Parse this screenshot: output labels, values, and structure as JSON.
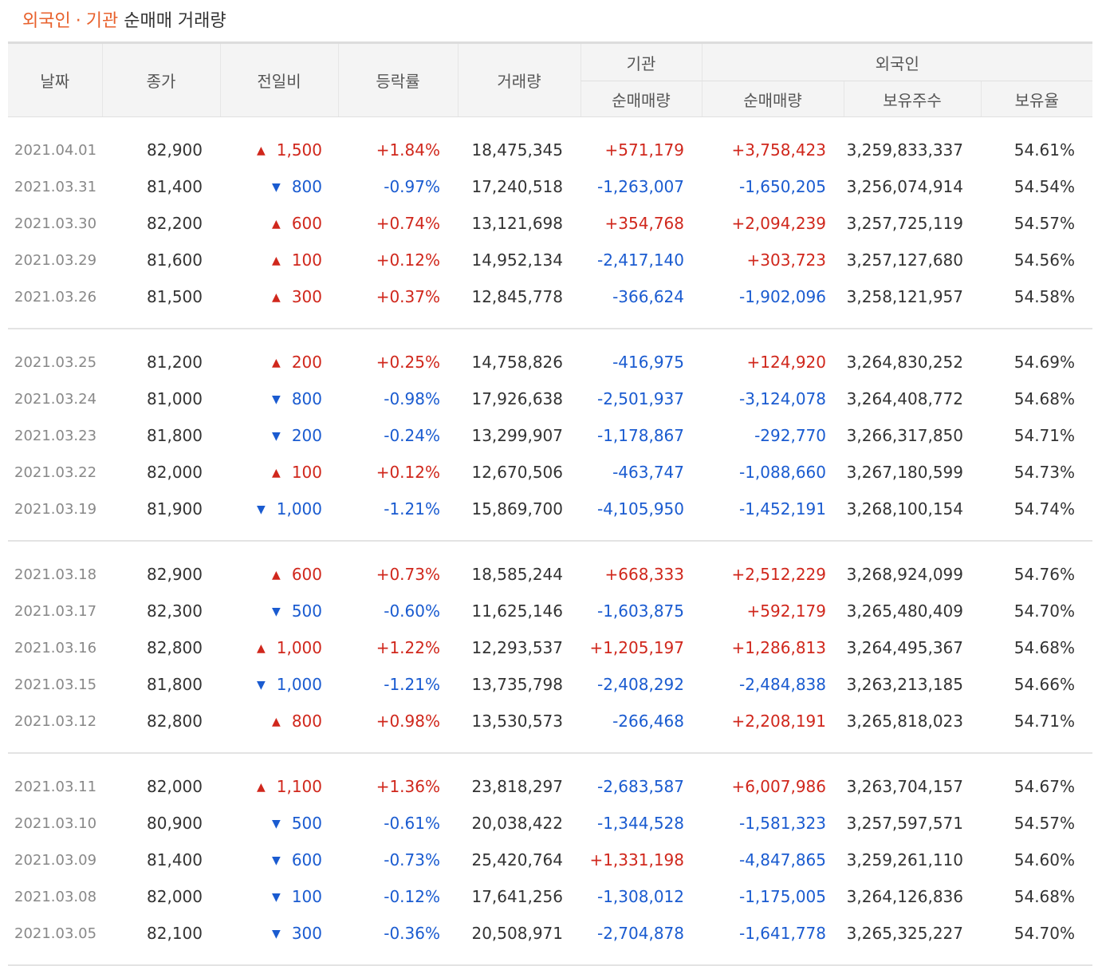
{
  "title": {
    "part1": "외국인",
    "dot": "·",
    "part2": "기관",
    "rest": "순매매 거래량"
  },
  "headers": {
    "date": "날짜",
    "close": "종가",
    "change": "전일비",
    "rate": "등락률",
    "volume": "거래량",
    "institution": "기관",
    "inst_net": "순매매량",
    "foreign": "외국인",
    "foreign_net": "순매매량",
    "holdings": "보유주수",
    "ratio": "보유율"
  },
  "colors": {
    "up": "#d0271c",
    "down": "#1a5bd0",
    "accent": "#e8612c"
  },
  "groups": [
    [
      {
        "date": "2021.04.01",
        "close": "82,900",
        "dir": "up",
        "change": "1,500",
        "rate": "+1.84%",
        "volume": "18,475,345",
        "inst": "+571,179",
        "inst_dir": "up",
        "foreign": "+3,758,423",
        "foreign_dir": "up",
        "holdings": "3,259,833,337",
        "ratio": "54.61%"
      },
      {
        "date": "2021.03.31",
        "close": "81,400",
        "dir": "down",
        "change": "800",
        "rate": "-0.97%",
        "volume": "17,240,518",
        "inst": "-1,263,007",
        "inst_dir": "down",
        "foreign": "-1,650,205",
        "foreign_dir": "down",
        "holdings": "3,256,074,914",
        "ratio": "54.54%"
      },
      {
        "date": "2021.03.30",
        "close": "82,200",
        "dir": "up",
        "change": "600",
        "rate": "+0.74%",
        "volume": "13,121,698",
        "inst": "+354,768",
        "inst_dir": "up",
        "foreign": "+2,094,239",
        "foreign_dir": "up",
        "holdings": "3,257,725,119",
        "ratio": "54.57%"
      },
      {
        "date": "2021.03.29",
        "close": "81,600",
        "dir": "up",
        "change": "100",
        "rate": "+0.12%",
        "volume": "14,952,134",
        "inst": "-2,417,140",
        "inst_dir": "down",
        "foreign": "+303,723",
        "foreign_dir": "up",
        "holdings": "3,257,127,680",
        "ratio": "54.56%"
      },
      {
        "date": "2021.03.26",
        "close": "81,500",
        "dir": "up",
        "change": "300",
        "rate": "+0.37%",
        "volume": "12,845,778",
        "inst": "-366,624",
        "inst_dir": "down",
        "foreign": "-1,902,096",
        "foreign_dir": "down",
        "holdings": "3,258,121,957",
        "ratio": "54.58%"
      }
    ],
    [
      {
        "date": "2021.03.25",
        "close": "81,200",
        "dir": "up",
        "change": "200",
        "rate": "+0.25%",
        "volume": "14,758,826",
        "inst": "-416,975",
        "inst_dir": "down",
        "foreign": "+124,920",
        "foreign_dir": "up",
        "holdings": "3,264,830,252",
        "ratio": "54.69%"
      },
      {
        "date": "2021.03.24",
        "close": "81,000",
        "dir": "down",
        "change": "800",
        "rate": "-0.98%",
        "volume": "17,926,638",
        "inst": "-2,501,937",
        "inst_dir": "down",
        "foreign": "-3,124,078",
        "foreign_dir": "down",
        "holdings": "3,264,408,772",
        "ratio": "54.68%"
      },
      {
        "date": "2021.03.23",
        "close": "81,800",
        "dir": "down",
        "change": "200",
        "rate": "-0.24%",
        "volume": "13,299,907",
        "inst": "-1,178,867",
        "inst_dir": "down",
        "foreign": "-292,770",
        "foreign_dir": "down",
        "holdings": "3,266,317,850",
        "ratio": "54.71%"
      },
      {
        "date": "2021.03.22",
        "close": "82,000",
        "dir": "up",
        "change": "100",
        "rate": "+0.12%",
        "volume": "12,670,506",
        "inst": "-463,747",
        "inst_dir": "down",
        "foreign": "-1,088,660",
        "foreign_dir": "down",
        "holdings": "3,267,180,599",
        "ratio": "54.73%"
      },
      {
        "date": "2021.03.19",
        "close": "81,900",
        "dir": "down",
        "change": "1,000",
        "rate": "-1.21%",
        "volume": "15,869,700",
        "inst": "-4,105,950",
        "inst_dir": "down",
        "foreign": "-1,452,191",
        "foreign_dir": "down",
        "holdings": "3,268,100,154",
        "ratio": "54.74%"
      }
    ],
    [
      {
        "date": "2021.03.18",
        "close": "82,900",
        "dir": "up",
        "change": "600",
        "rate": "+0.73%",
        "volume": "18,585,244",
        "inst": "+668,333",
        "inst_dir": "up",
        "foreign": "+2,512,229",
        "foreign_dir": "up",
        "holdings": "3,268,924,099",
        "ratio": "54.76%"
      },
      {
        "date": "2021.03.17",
        "close": "82,300",
        "dir": "down",
        "change": "500",
        "rate": "-0.60%",
        "volume": "11,625,146",
        "inst": "-1,603,875",
        "inst_dir": "down",
        "foreign": "+592,179",
        "foreign_dir": "up",
        "holdings": "3,265,480,409",
        "ratio": "54.70%"
      },
      {
        "date": "2021.03.16",
        "close": "82,800",
        "dir": "up",
        "change": "1,000",
        "rate": "+1.22%",
        "volume": "12,293,537",
        "inst": "+1,205,197",
        "inst_dir": "up",
        "foreign": "+1,286,813",
        "foreign_dir": "up",
        "holdings": "3,264,495,367",
        "ratio": "54.68%"
      },
      {
        "date": "2021.03.15",
        "close": "81,800",
        "dir": "down",
        "change": "1,000",
        "rate": "-1.21%",
        "volume": "13,735,798",
        "inst": "-2,408,292",
        "inst_dir": "down",
        "foreign": "-2,484,838",
        "foreign_dir": "down",
        "holdings": "3,263,213,185",
        "ratio": "54.66%"
      },
      {
        "date": "2021.03.12",
        "close": "82,800",
        "dir": "up",
        "change": "800",
        "rate": "+0.98%",
        "volume": "13,530,573",
        "inst": "-266,468",
        "inst_dir": "down",
        "foreign": "+2,208,191",
        "foreign_dir": "up",
        "holdings": "3,265,818,023",
        "ratio": "54.71%"
      }
    ],
    [
      {
        "date": "2021.03.11",
        "close": "82,000",
        "dir": "up",
        "change": "1,100",
        "rate": "+1.36%",
        "volume": "23,818,297",
        "inst": "-2,683,587",
        "inst_dir": "down",
        "foreign": "+6,007,986",
        "foreign_dir": "up",
        "holdings": "3,263,704,157",
        "ratio": "54.67%"
      },
      {
        "date": "2021.03.10",
        "close": "80,900",
        "dir": "down",
        "change": "500",
        "rate": "-0.61%",
        "volume": "20,038,422",
        "inst": "-1,344,528",
        "inst_dir": "down",
        "foreign": "-1,581,323",
        "foreign_dir": "down",
        "holdings": "3,257,597,571",
        "ratio": "54.57%"
      },
      {
        "date": "2021.03.09",
        "close": "81,400",
        "dir": "down",
        "change": "600",
        "rate": "-0.73%",
        "volume": "25,420,764",
        "inst": "+1,331,198",
        "inst_dir": "up",
        "foreign": "-4,847,865",
        "foreign_dir": "down",
        "holdings": "3,259,261,110",
        "ratio": "54.60%"
      },
      {
        "date": "2021.03.08",
        "close": "82,000",
        "dir": "down",
        "change": "100",
        "rate": "-0.12%",
        "volume": "17,641,256",
        "inst": "-1,308,012",
        "inst_dir": "down",
        "foreign": "-1,175,005",
        "foreign_dir": "down",
        "holdings": "3,264,126,836",
        "ratio": "54.68%"
      },
      {
        "date": "2021.03.05",
        "close": "82,100",
        "dir": "down",
        "change": "300",
        "rate": "-0.36%",
        "volume": "20,508,971",
        "inst": "-2,704,878",
        "inst_dir": "down",
        "foreign": "-1,641,778",
        "foreign_dir": "down",
        "holdings": "3,265,325,227",
        "ratio": "54.70%"
      }
    ]
  ]
}
